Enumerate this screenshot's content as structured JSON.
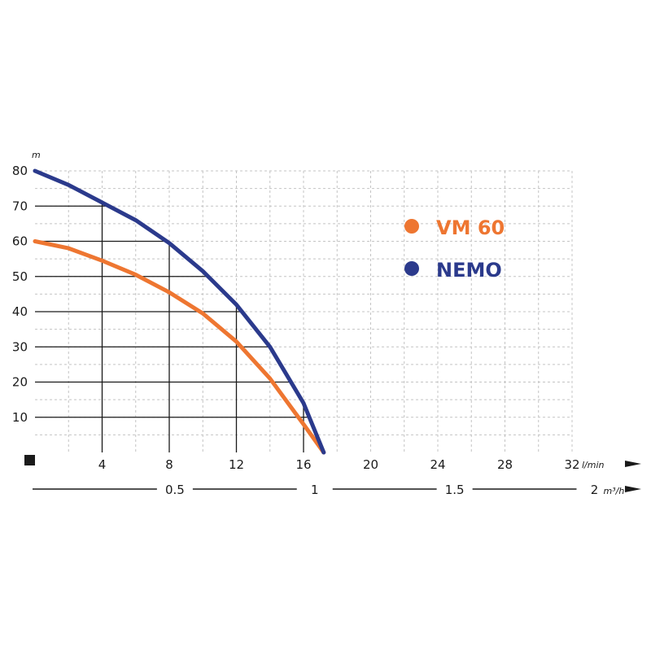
{
  "chart_data": {
    "type": "line",
    "x_unit": "l/min",
    "y_unit": "m",
    "x2_unit": "m³/h",
    "xlim": [
      0,
      32
    ],
    "ylim": [
      0,
      80
    ],
    "x_ticks": [
      "4",
      "8",
      "12",
      "16",
      "20",
      "24",
      "28",
      "32"
    ],
    "y_ticks": [
      "10",
      "20",
      "30",
      "40",
      "50",
      "60",
      "70",
      "80"
    ],
    "x2_ticks": [
      "0.5",
      "1",
      "1.5",
      "2"
    ],
    "x2_tick_values": [
      0.5,
      1,
      1.5,
      2
    ],
    "grid": true,
    "legend_position": "top-right",
    "series": [
      {
        "name": "VM 60",
        "color": "#ee7631",
        "x": [
          0,
          2,
          4,
          6,
          8,
          10,
          12,
          14,
          16,
          17.2
        ],
        "y": [
          60,
          58,
          54.5,
          50.5,
          45.5,
          39.5,
          31.5,
          21,
          8,
          0
        ]
      },
      {
        "name": "NEMO",
        "color": "#2b3a8c",
        "x": [
          0,
          2,
          4,
          6,
          8,
          10,
          12,
          14,
          16,
          17.2
        ],
        "y": [
          80,
          76,
          71,
          66,
          59.5,
          51.5,
          42,
          30,
          14,
          0
        ]
      }
    ]
  }
}
